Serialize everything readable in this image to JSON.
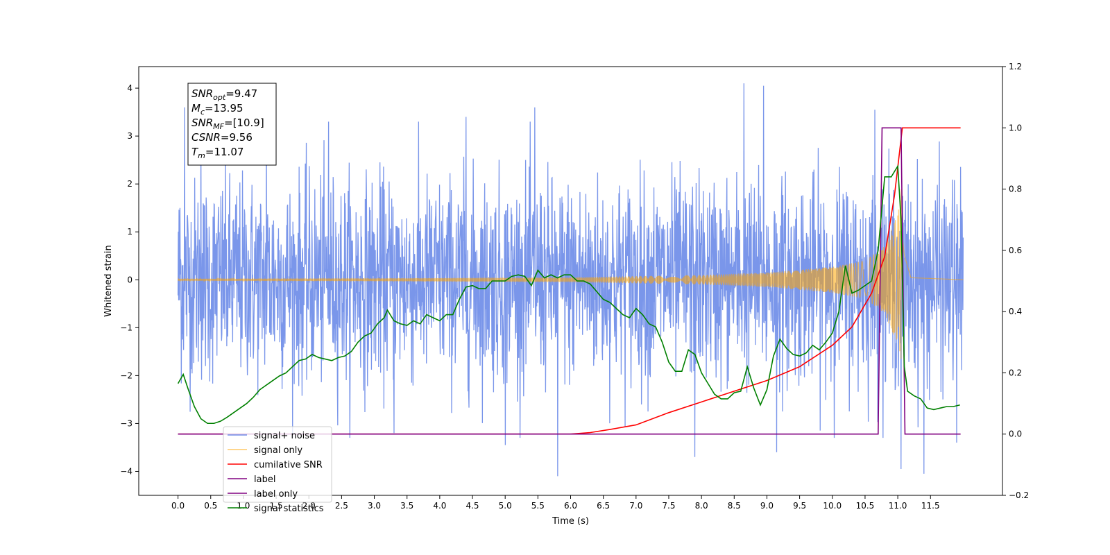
{
  "chart_data": {
    "type": "line",
    "xlabel": "Time (s)",
    "ylabel": "Whitened strain",
    "ylabel_right": "",
    "xlim": [
      -0.6,
      12.6
    ],
    "ylim": [
      -4.5,
      4.45
    ],
    "ylim_right": [
      -0.2,
      1.2
    ],
    "x_ticks": [
      0.0,
      0.5,
      1.0,
      1.5,
      2.0,
      2.5,
      3.0,
      3.5,
      4.0,
      4.5,
      5.0,
      5.5,
      6.0,
      6.5,
      7.0,
      7.5,
      8.0,
      8.5,
      9.0,
      9.5,
      10.0,
      10.5,
      11.0,
      11.5
    ],
    "x_tick_labels": [
      "0.0",
      "0.5",
      "1.0",
      "1.5",
      "2.0",
      "2.5",
      "3.0",
      "3.5",
      "4.0",
      "4.5",
      "5.0",
      "5.5",
      "6.0",
      "6.5",
      "7.0",
      "7.5",
      "8.0",
      "8.5",
      "9.0",
      "9.5",
      "10.0",
      "10.5",
      "11.0",
      "11.5"
    ],
    "y_ticks": [
      -4,
      -3,
      -2,
      -1,
      0,
      1,
      2,
      3,
      4
    ],
    "y_tick_labels": [
      "−4",
      "−3",
      "−2",
      "−1",
      "0",
      "1",
      "2",
      "3",
      "4"
    ],
    "y_ticks_right": [
      -0.2,
      0.0,
      0.2,
      0.4,
      0.6,
      0.8,
      1.0,
      1.2
    ],
    "y_tick_labels_right": [
      "−0.2",
      "0.0",
      "0.2",
      "0.4",
      "0.6",
      "0.8",
      "1.0",
      "1.2"
    ],
    "grid": false,
    "legend_position": "bottom-left",
    "annotation": {
      "lines": [
        {
          "main": "SNR",
          "sub": "opt",
          "rest": "=9.47"
        },
        {
          "main": "M",
          "sub": "c",
          "rest": "=13.95"
        },
        {
          "main": "SNR",
          "sub": "MF",
          "rest": "=[10.9]"
        },
        {
          "main": "CSNR",
          "sub": "",
          "rest": "=9.56"
        },
        {
          "main": "T",
          "sub": "m",
          "rest": "=11.07"
        }
      ]
    },
    "series": [
      {
        "name": "signal+ noise",
        "axis": "left",
        "color": "#4169e1",
        "opacity": 0.7,
        "kind": "noise",
        "x_range": [
          0.0,
          12.0
        ],
        "std": 1.05,
        "peak_values": [
          {
            "x": 0.03,
            "y": 1.5
          },
          {
            "x": 0.1,
            "y": 3.6
          },
          {
            "x": 0.35,
            "y": 3.4
          },
          {
            "x": 1.35,
            "y": 3.6
          },
          {
            "x": 2.3,
            "y": 3.3
          },
          {
            "x": 4.4,
            "y": 3.4
          },
          {
            "x": 5.45,
            "y": 3.6
          },
          {
            "x": 8.95,
            "y": 4.05
          },
          {
            "x": 8.65,
            "y": 4.1
          },
          {
            "x": 10.65,
            "y": 3.55
          },
          {
            "x": 5.8,
            "y": -4.1
          },
          {
            "x": 11.4,
            "y": -4.05
          },
          {
            "x": 5.0,
            "y": -3.45
          },
          {
            "x": 11.05,
            "y": -3.95
          },
          {
            "x": 7.9,
            "y": -3.7
          },
          {
            "x": 9.15,
            "y": -3.6
          },
          {
            "x": 3.3,
            "y": -3.2
          },
          {
            "x": 11.9,
            "y": -3.4
          }
        ]
      },
      {
        "name": "signal only",
        "axis": "left",
        "color": "#ffa500",
        "opacity": 0.55,
        "kind": "chirp",
        "x_range": [
          0.0,
          12.0
        ],
        "merger_time": 11.07,
        "envelope": {
          "x": [
            0.0,
            3.0,
            6.0,
            8.0,
            9.0,
            10.0,
            10.5,
            10.8,
            11.0,
            11.07,
            11.1,
            11.2,
            12.0
          ],
          "y": [
            0.02,
            0.03,
            0.05,
            0.1,
            0.15,
            0.27,
            0.4,
            0.7,
            1.4,
            2.05,
            1.2,
            0.1,
            0.0
          ]
        }
      },
      {
        "name": "cumilative SNR",
        "axis": "right",
        "color": "#ff0000",
        "x": [
          0.0,
          6.0,
          6.3,
          6.6,
          7.0,
          7.5,
          8.0,
          8.5,
          9.0,
          9.5,
          10.0,
          10.3,
          10.6,
          10.8,
          10.95,
          11.07,
          11.1,
          11.5,
          11.96
        ],
        "y": [
          0.0,
          0.0,
          0.005,
          0.015,
          0.03,
          0.07,
          0.105,
          0.14,
          0.175,
          0.22,
          0.29,
          0.35,
          0.46,
          0.58,
          0.78,
          1.0,
          1.0,
          1.0,
          1.0
        ]
      },
      {
        "name": "label",
        "axis": "right",
        "color": "#800080",
        "x": [
          0.0,
          10.7,
          10.76,
          11.05,
          11.11,
          11.96
        ],
        "y": [
          0.0,
          0.0,
          1.0,
          1.0,
          0.0,
          0.0
        ]
      },
      {
        "name": "label only",
        "axis": "right",
        "color": "#800080",
        "hidden": true
      },
      {
        "name": "signal statistics",
        "axis": "right",
        "color": "#008000",
        "x": [
          0.0,
          0.08,
          0.15,
          0.25,
          0.35,
          0.45,
          0.55,
          0.65,
          0.75,
          0.85,
          0.95,
          1.05,
          1.15,
          1.25,
          1.35,
          1.45,
          1.55,
          1.65,
          1.75,
          1.85,
          1.95,
          2.05,
          2.15,
          2.25,
          2.35,
          2.45,
          2.55,
          2.65,
          2.75,
          2.85,
          2.95,
          3.05,
          3.15,
          3.2,
          3.3,
          3.4,
          3.5,
          3.6,
          3.7,
          3.8,
          3.9,
          4.0,
          4.1,
          4.2,
          4.3,
          4.4,
          4.5,
          4.6,
          4.7,
          4.8,
          4.9,
          5.0,
          5.1,
          5.2,
          5.3,
          5.4,
          5.5,
          5.6,
          5.7,
          5.8,
          5.9,
          6.0,
          6.1,
          6.2,
          6.3,
          6.4,
          6.5,
          6.6,
          6.7,
          6.8,
          6.9,
          7.0,
          7.1,
          7.2,
          7.3,
          7.4,
          7.5,
          7.6,
          7.7,
          7.8,
          7.9,
          8.0,
          8.1,
          8.2,
          8.3,
          8.4,
          8.5,
          8.6,
          8.7,
          8.8,
          8.9,
          9.0,
          9.1,
          9.2,
          9.3,
          9.4,
          9.5,
          9.6,
          9.7,
          9.8,
          9.9,
          10.0,
          10.1,
          10.2,
          10.3,
          10.4,
          10.5,
          10.6,
          10.7,
          10.8,
          10.9,
          11.0,
          11.05,
          11.1,
          11.15,
          11.25,
          11.35,
          11.45,
          11.55,
          11.65,
          11.75,
          11.85,
          11.95
        ],
        "y": [
          0.165,
          0.195,
          0.15,
          0.09,
          0.05,
          0.035,
          0.035,
          0.042,
          0.055,
          0.07,
          0.085,
          0.1,
          0.12,
          0.145,
          0.16,
          0.175,
          0.19,
          0.2,
          0.22,
          0.24,
          0.245,
          0.26,
          0.25,
          0.245,
          0.24,
          0.25,
          0.255,
          0.27,
          0.3,
          0.32,
          0.33,
          0.36,
          0.38,
          0.405,
          0.37,
          0.36,
          0.355,
          0.37,
          0.36,
          0.39,
          0.38,
          0.37,
          0.39,
          0.39,
          0.44,
          0.48,
          0.485,
          0.475,
          0.475,
          0.5,
          0.5,
          0.5,
          0.515,
          0.52,
          0.515,
          0.485,
          0.535,
          0.51,
          0.52,
          0.51,
          0.52,
          0.52,
          0.5,
          0.5,
          0.49,
          0.465,
          0.44,
          0.43,
          0.41,
          0.39,
          0.38,
          0.41,
          0.39,
          0.36,
          0.35,
          0.3,
          0.235,
          0.205,
          0.205,
          0.275,
          0.26,
          0.2,
          0.165,
          0.13,
          0.115,
          0.115,
          0.135,
          0.14,
          0.22,
          0.15,
          0.095,
          0.145,
          0.255,
          0.31,
          0.28,
          0.26,
          0.255,
          0.265,
          0.29,
          0.275,
          0.3,
          0.33,
          0.4,
          0.55,
          0.46,
          0.47,
          0.485,
          0.5,
          0.6,
          0.84,
          0.84,
          0.875,
          0.7,
          0.22,
          0.14,
          0.125,
          0.115,
          0.085,
          0.08,
          0.085,
          0.09,
          0.09,
          0.095
        ]
      }
    ]
  }
}
